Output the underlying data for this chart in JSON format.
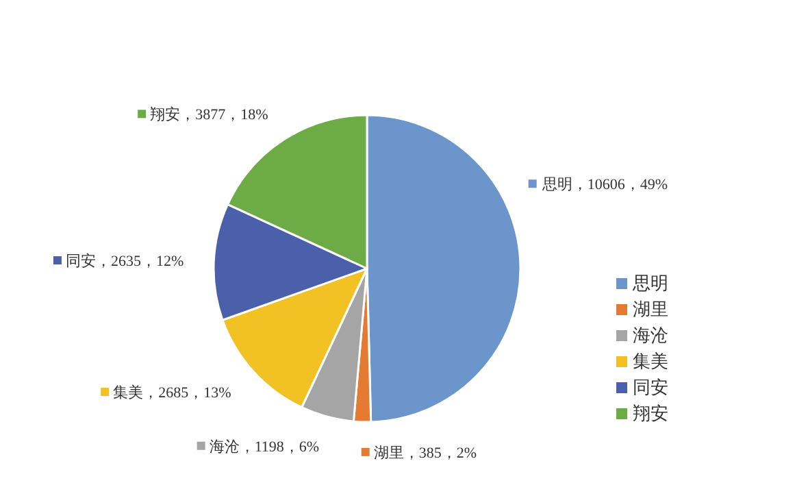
{
  "chart_data": {
    "type": "pie",
    "categories": [
      "思明",
      "湖里",
      "海沧",
      "集美",
      "同安",
      "翔安"
    ],
    "values": [
      10606,
      385,
      1198,
      2685,
      2635,
      3877
    ],
    "colors": [
      "#6b95cb",
      "#e57b32",
      "#a5a5a5",
      "#f2c225",
      "#4b60ab",
      "#6cab46"
    ],
    "value_labels": [
      "思明，10606，49%",
      "湖里，385，2%",
      "海沧，1198，6%",
      "集美，2685，13%",
      "同安，2635，12%",
      "翔安，3877，18%"
    ],
    "legend": "right"
  }
}
